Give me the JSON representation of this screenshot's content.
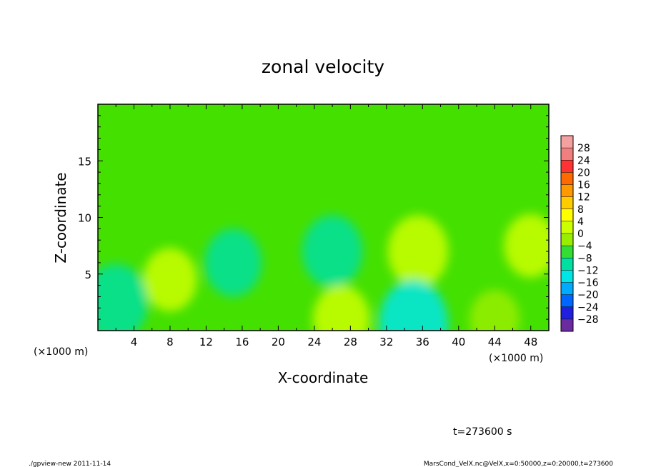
{
  "chart_data": {
    "type": "heatmap",
    "title": "zonal velocity",
    "xlabel": "X-coordinate",
    "ylabel": "Z-coordinate",
    "x_unit_label": "(×1000 m)",
    "x_unit_label_right": "(×1000 m)",
    "xlim": [
      0,
      50
    ],
    "ylim": [
      0,
      20
    ],
    "x_ticks": [
      4,
      8,
      12,
      16,
      20,
      24,
      28,
      32,
      36,
      40,
      44,
      48
    ],
    "y_ticks": [
      5,
      10,
      15
    ],
    "colorbar": {
      "levels": [
        28,
        24,
        20,
        16,
        12,
        8,
        4,
        0,
        -4,
        -8,
        -12,
        -16,
        -20,
        -24,
        -28
      ],
      "labels": [
        "28",
        "24",
        "20",
        "16",
        "12",
        "8",
        "4",
        "0",
        "−4",
        "−8",
        "−12",
        "−16",
        "−20",
        "−24",
        "−28"
      ],
      "colors": [
        "#f08080",
        "#ff3333",
        "#ff6a00",
        "#ff9900",
        "#ffcc00",
        "#ffff00",
        "#ccff00",
        "#99ee00",
        "#33dd33",
        "#00e0a0",
        "#00e6e6",
        "#00aaff",
        "#0066ff",
        "#1f1fdd",
        "#6a2aa0"
      ]
    },
    "field_approx": {
      "background_value": 0,
      "features": [
        {
          "x": 26,
          "z": 7,
          "value": -6
        },
        {
          "x": 35.5,
          "z": 7,
          "value": 6
        },
        {
          "x": 8,
          "z": 4.5,
          "value": 4
        },
        {
          "x": 27,
          "z": 1,
          "value": 5
        },
        {
          "x": 35,
          "z": 0.5,
          "value": -11
        },
        {
          "x": 44,
          "z": 1,
          "value": 3
        },
        {
          "x": 2,
          "z": 2.5,
          "value": -7
        },
        {
          "x": 15,
          "z": 6,
          "value": -5
        },
        {
          "x": 48,
          "z": 7.5,
          "value": 4
        }
      ]
    }
  },
  "annotations": {
    "time_label": "t=273600 s",
    "program_label": "./gpview-new  2011-11-14",
    "source_label": "MarsCond_VelX.nc@VelX,x=0:50000,z=0:20000,t=273600"
  },
  "colors": {
    "frame": "#000000",
    "background_field": "#44e000"
  }
}
